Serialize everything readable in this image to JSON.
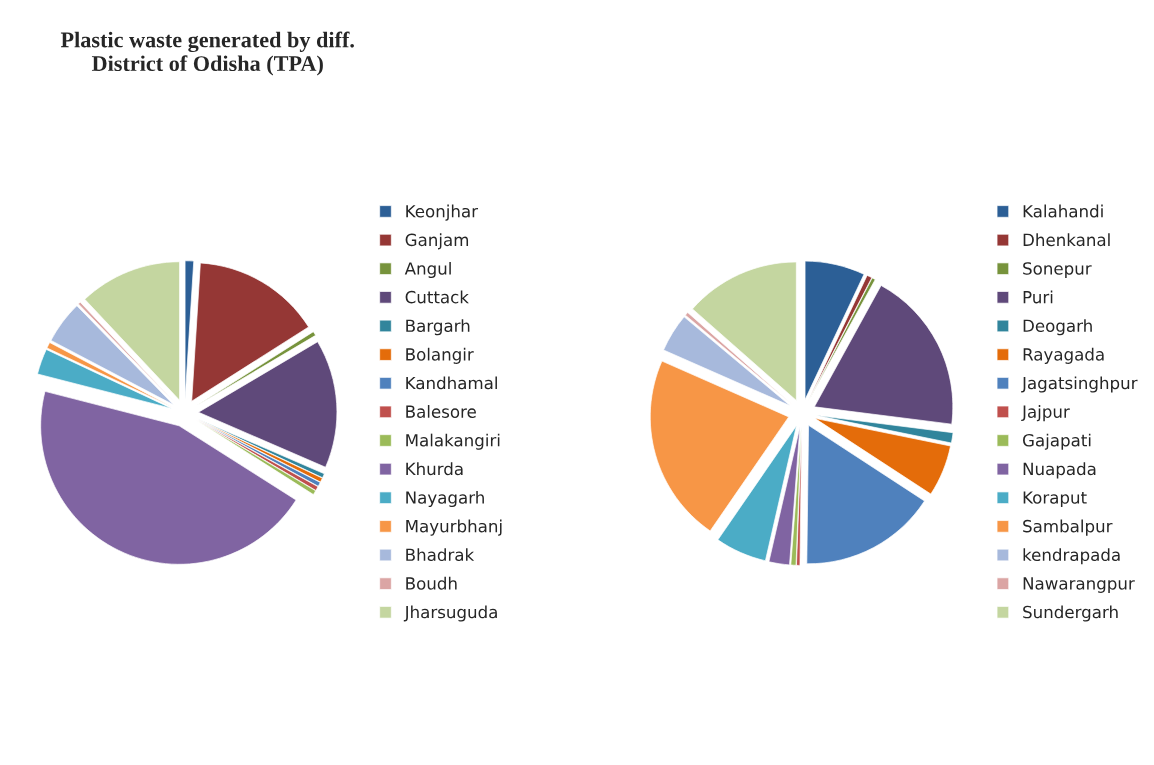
{
  "chart_data": [
    {
      "type": "pie",
      "title": "Plastic waste generated by diff.\nDistrict of Odisha (TPA)",
      "legend": "right",
      "categories": [
        "Keonjhar",
        "Ganjam",
        "Angul",
        "Cuttack",
        "Bargarh",
        "Bolangir",
        "Kandhamal",
        "Balesore",
        "Malakangiri",
        "Khurda",
        "Nayagarh",
        "Mayurbhanj",
        "Bhadrak",
        "Boudh",
        "Jharsuguda"
      ],
      "values": [
        1,
        15,
        0.5,
        15,
        0.5,
        0.5,
        0.5,
        0.5,
        0.5,
        45,
        3,
        0.7,
        5,
        0.3,
        12
      ],
      "colors": [
        "#2c5f96",
        "#953735",
        "#77933c",
        "#5f497a",
        "#31859c",
        "#e46c0a",
        "#4f81bd",
        "#c0504d",
        "#9bbb59",
        "#8064a2",
        "#4bacc6",
        "#f79646",
        "#a7b9dc",
        "#dba5a4",
        "#c4d6a0"
      ]
    },
    {
      "type": "pie",
      "legend": "right",
      "categories": [
        "Kalahandi",
        "Dhenkanal",
        "Sonepur",
        "Puri",
        "Deogarh",
        "Rayagada",
        "Jagatsinghpur",
        "Jajpur",
        "Gajapati",
        "Nuapada",
        "Koraput",
        "Sambalpur",
        "kendrapada",
        "Nawarangpur",
        "Sundergarh"
      ],
      "values": [
        7,
        0.6,
        0.4,
        19,
        1.2,
        6,
        16,
        0.4,
        0.6,
        2.4,
        6,
        22,
        4.5,
        0.4,
        13.5
      ],
      "colors": [
        "#2c5f96",
        "#953735",
        "#77933c",
        "#5f497a",
        "#31859c",
        "#e46c0a",
        "#4f81bd",
        "#c0504d",
        "#9bbb59",
        "#8064a2",
        "#4bacc6",
        "#f79646",
        "#a7b9dc",
        "#dba5a4",
        "#c4d6a0"
      ]
    }
  ]
}
